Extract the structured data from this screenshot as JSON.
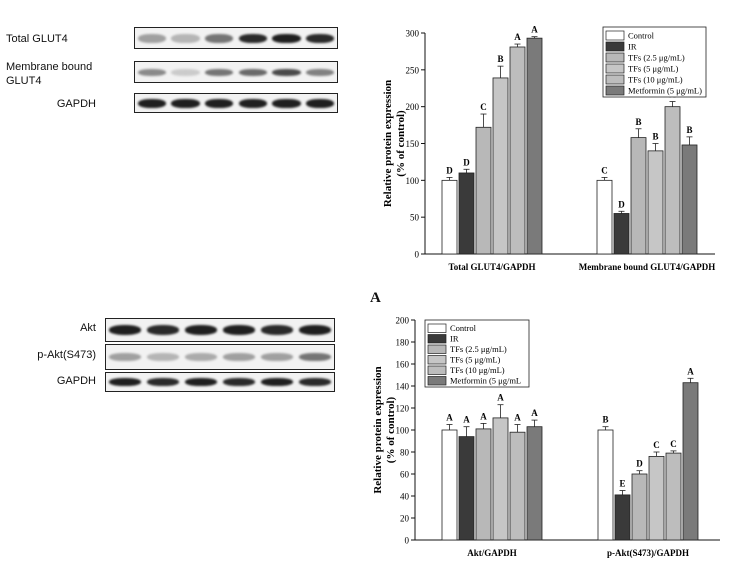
{
  "blots": {
    "top": {
      "rows": [
        {
          "label": "Total GLUT4",
          "intensities": [
            0.35,
            0.25,
            0.55,
            0.9,
            0.95,
            0.9
          ]
        },
        {
          "label": "Membrane bound GLUT4",
          "intensities": [
            0.45,
            0.15,
            0.55,
            0.6,
            0.75,
            0.5
          ]
        },
        {
          "label": "GAPDH",
          "intensities": [
            0.95,
            0.95,
            0.95,
            0.95,
            0.95,
            0.95
          ]
        }
      ]
    },
    "bottom": {
      "rows": [
        {
          "label": "Akt",
          "intensities": [
            0.95,
            0.9,
            0.95,
            0.95,
            0.9,
            0.95
          ]
        },
        {
          "label": "p-Akt(S473)",
          "intensities": [
            0.35,
            0.25,
            0.3,
            0.35,
            0.35,
            0.55
          ]
        },
        {
          "label": "GAPDH",
          "intensities": [
            0.95,
            0.9,
            0.95,
            0.9,
            0.95,
            0.9
          ]
        }
      ]
    }
  },
  "panel_label": "A",
  "chart_data": [
    {
      "type": "bar",
      "ylabel_line1": "Relative protein expression",
      "ylabel_line2": "(% of control)",
      "ylim": [
        0,
        300
      ],
      "yticks": [
        0,
        50,
        100,
        150,
        200,
        250,
        300
      ],
      "categories": [
        "Total GLUT4/GAPDH",
        "Membrane bound GLUT4/GAPDH"
      ],
      "legend_position": "top-right",
      "series": [
        {
          "name": "Control",
          "color": "#ffffff",
          "values": [
            100,
            100
          ],
          "errors": [
            4,
            4
          ],
          "letters": [
            "D",
            "C"
          ]
        },
        {
          "name": "IR",
          "color": "#3a3a3a",
          "values": [
            110,
            55
          ],
          "errors": [
            5,
            3
          ],
          "letters": [
            "D",
            "D"
          ]
        },
        {
          "name": "TFs (2.5 μg/mL)",
          "color": "#b8b8b8",
          "values": [
            172,
            158
          ],
          "errors": [
            18,
            12
          ],
          "letters": [
            "C",
            "B"
          ]
        },
        {
          "name": "TFs (5 μg/mL)",
          "color": "#c6c6c6",
          "values": [
            239,
            140
          ],
          "errors": [
            16,
            10
          ],
          "letters": [
            "B",
            "B"
          ]
        },
        {
          "name": "TFs (10 μg/mL)",
          "color": "#bdbdbd",
          "values": [
            281,
            200
          ],
          "errors": [
            4,
            7
          ],
          "letters": [
            "A",
            "A"
          ]
        },
        {
          "name": "Metformin (5 μg/mL)",
          "color": "#7a7a7a",
          "values": [
            293,
            148
          ],
          "errors": [
            2,
            11
          ],
          "letters": [
            "A",
            "B"
          ]
        }
      ]
    },
    {
      "type": "bar",
      "ylabel_line1": "Relative protein expression",
      "ylabel_line2": "(% of control)",
      "ylim": [
        0,
        200
      ],
      "yticks": [
        0,
        20,
        40,
        60,
        80,
        100,
        120,
        140,
        160,
        180,
        200
      ],
      "categories": [
        "Akt/GAPDH",
        "p-Akt(S473)/GAPDH"
      ],
      "legend_position": "top-left",
      "series": [
        {
          "name": "Control",
          "color": "#ffffff",
          "values": [
            100,
            100
          ],
          "errors": [
            5,
            3
          ],
          "letters": [
            "A",
            "B"
          ]
        },
        {
          "name": "IR",
          "color": "#3a3a3a",
          "values": [
            94,
            41
          ],
          "errors": [
            9,
            4
          ],
          "letters": [
            "A",
            "E"
          ]
        },
        {
          "name": "TFs (2.5 μg/mL)",
          "color": "#b8b8b8",
          "values": [
            101,
            60
          ],
          "errors": [
            5,
            3
          ],
          "letters": [
            "A",
            "D"
          ]
        },
        {
          "name": "TFs (5 μg/mL)",
          "color": "#c6c6c6",
          "values": [
            111,
            76
          ],
          "errors": [
            12,
            4
          ],
          "letters": [
            "A",
            "C"
          ]
        },
        {
          "name": "TFs (10 μg/mL)",
          "color": "#bdbdbd",
          "values": [
            98,
            79
          ],
          "errors": [
            7,
            2
          ],
          "letters": [
            "A",
            "C"
          ]
        },
        {
          "name": "Metformin (5 μg/mL",
          "color": "#7a7a7a",
          "values": [
            103,
            143
          ],
          "errors": [
            6,
            4
          ],
          "letters": [
            "A",
            "A"
          ]
        }
      ]
    }
  ]
}
